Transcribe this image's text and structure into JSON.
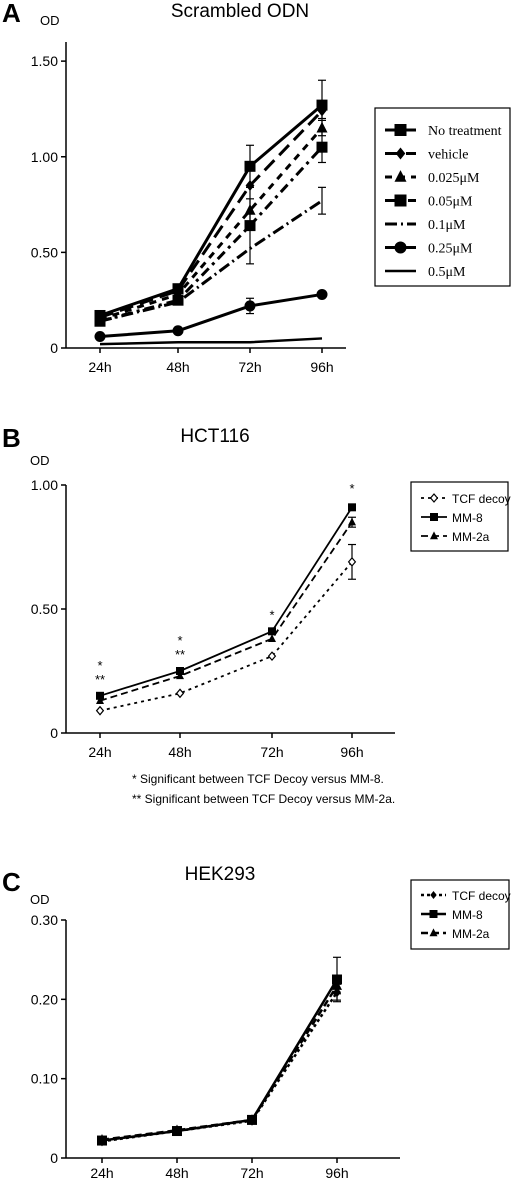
{
  "chart_data": [
    {
      "panel": "A",
      "type": "line",
      "title": "Scrambled ODN",
      "ylabel": "OD",
      "xlabel": "",
      "categories": [
        "24h",
        "48h",
        "72h",
        "96h"
      ],
      "ylim": [
        0,
        1.6
      ],
      "yticks": [
        0,
        0.5,
        1.0,
        1.5
      ],
      "ytick_labels": [
        "0",
        "0.50",
        "1.00",
        "1.50"
      ],
      "grid": false,
      "legend_position": "right",
      "series": [
        {
          "name": "No treatment",
          "values": [
            0.17,
            0.31,
            0.95,
            1.27
          ],
          "err": [
            0,
            0.02,
            0.11,
            0.13
          ],
          "dash": "",
          "marker": "square",
          "width": 3
        },
        {
          "name": "vehicle",
          "values": [
            0.16,
            0.3,
            0.85,
            1.24
          ],
          "err": [
            0,
            0,
            0,
            0.04
          ],
          "dash": "14,7",
          "marker": "diamond",
          "width": 3
        },
        {
          "name": "0.025μM",
          "values": [
            0.15,
            0.28,
            0.72,
            1.15
          ],
          "err": [
            0,
            0,
            0.06,
            0.04
          ],
          "dash": "7,6",
          "marker": "triangle",
          "width": 3
        },
        {
          "name": "0.05μM",
          "values": [
            0.14,
            0.25,
            0.64,
            1.05
          ],
          "err": [
            0,
            0,
            0.2,
            0.08
          ],
          "dash": "10,5,3,5",
          "marker": "square",
          "width": 3
        },
        {
          "name": "0.1μM",
          "values": [
            0.14,
            0.24,
            0.52,
            0.77
          ],
          "err": [
            0,
            0,
            0,
            0.07
          ],
          "dash": "12,4,2,4",
          "marker": "none",
          "width": 3
        },
        {
          "name": "0.25μM",
          "values": [
            0.06,
            0.09,
            0.22,
            0.28
          ],
          "err": [
            0,
            0,
            0.04,
            0.01
          ],
          "dash": "",
          "marker": "circle",
          "width": 3
        },
        {
          "name": "0.5μM",
          "values": [
            0.02,
            0.03,
            0.03,
            0.05
          ],
          "err": [
            0,
            0,
            0,
            0
          ],
          "dash": "",
          "marker": "none",
          "width": 2.5
        }
      ]
    },
    {
      "panel": "B",
      "type": "line",
      "title": "HCT116",
      "ylabel": "OD",
      "xlabel": "",
      "categories": [
        "24h",
        "48h",
        "72h",
        "96h"
      ],
      "ylim": [
        0,
        1.0
      ],
      "yticks": [
        0,
        0.5,
        1.0
      ],
      "ytick_labels": [
        "0",
        "0.50",
        "1.00"
      ],
      "grid": false,
      "legend_position": "top-right",
      "series": [
        {
          "name": "TCF decoy",
          "values": [
            0.09,
            0.16,
            0.31,
            0.69
          ],
          "err": [
            0,
            0,
            0,
            0.07
          ],
          "dash": "3,4",
          "marker": "diamond-open",
          "width": 1.8
        },
        {
          "name": "MM-8",
          "values": [
            0.15,
            0.25,
            0.41,
            0.91
          ],
          "err": [
            0,
            0,
            0,
            0.01
          ],
          "dash": "",
          "marker": "square",
          "width": 1.8
        },
        {
          "name": "MM-2a",
          "values": [
            0.13,
            0.23,
            0.38,
            0.85
          ],
          "err": [
            0,
            0,
            0,
            0.02
          ],
          "dash": "7,4",
          "marker": "triangle",
          "width": 1.8
        }
      ],
      "annotations": [
        {
          "category": "24h",
          "lines": [
            "*",
            "**"
          ]
        },
        {
          "category": "48h",
          "lines": [
            "*",
            "**"
          ]
        },
        {
          "category": "72h",
          "lines": [
            "*"
          ]
        },
        {
          "category": "96h",
          "lines": [
            "*"
          ]
        }
      ],
      "notes": [
        "* Significant between TCF Decoy versus MM-8.",
        "** Significant between TCF Decoy versus MM-2a."
      ]
    },
    {
      "panel": "C",
      "type": "line",
      "title": "HEK293",
      "ylabel": "OD",
      "xlabel": "",
      "categories": [
        "24h",
        "48h",
        "72h",
        "96h"
      ],
      "ylim": [
        0,
        0.3
      ],
      "yticks": [
        0,
        0.1,
        0.2,
        0.3
      ],
      "ytick_labels": [
        "0",
        "0.10",
        "0.20",
        "0.30"
      ],
      "grid": false,
      "legend_position": "top-right",
      "series": [
        {
          "name": "TCF decoy",
          "values": [
            0.021,
            0.034,
            0.047,
            0.209
          ],
          "err": [
            0,
            0,
            0,
            0.01
          ],
          "dash": "3,3",
          "marker": "diamond",
          "width": 2.5
        },
        {
          "name": "MM-8",
          "values": [
            0.022,
            0.034,
            0.048,
            0.225
          ],
          "err": [
            0,
            0,
            0,
            0.028
          ],
          "dash": "",
          "marker": "square",
          "width": 2.5
        },
        {
          "name": "MM-2a",
          "values": [
            0.023,
            0.035,
            0.048,
            0.217
          ],
          "err": [
            0,
            0,
            0,
            0.01
          ],
          "dash": "7,4",
          "marker": "triangle",
          "width": 2.5
        }
      ]
    }
  ]
}
